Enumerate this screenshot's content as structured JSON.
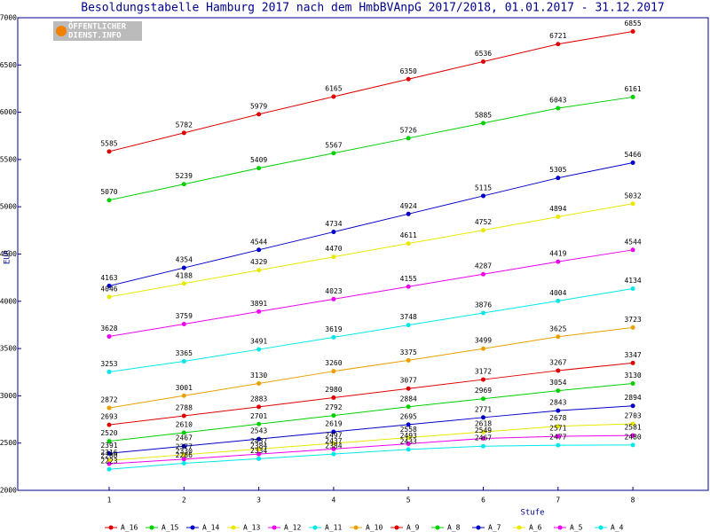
{
  "chart_data": {
    "type": "line",
    "title": "Besoldungstabelle Hamburg 2017 nach dem HmbBVAnpG 2017/2018, 01.01.2017 - 31.12.2017",
    "logo": [
      "ÖFFENTLICHER",
      "DIENST.INFO"
    ],
    "x_label": "Stufe",
    "y_label": "EUR",
    "categories": [
      "1",
      "2",
      "3",
      "4",
      "5",
      "6",
      "7",
      "8"
    ],
    "ylim": [
      2000,
      7000
    ],
    "yticks": [
      2000,
      2500,
      3000,
      3500,
      4000,
      4500,
      5000,
      5500,
      6000,
      6500,
      7000
    ],
    "legend": "bottom",
    "series": [
      {
        "name": "A_16",
        "color": "#e00000",
        "values": [
          5585,
          5782,
          5979,
          6165,
          6350,
          6536,
          6721,
          6855
        ]
      },
      {
        "name": "A_15",
        "color": "#00d000",
        "values": [
          5070,
          5239,
          5409,
          5567,
          5726,
          5885,
          6043,
          6161
        ]
      },
      {
        "name": "A_14",
        "color": "#0000c8",
        "values": [
          4163,
          4354,
          4544,
          4734,
          4924,
          5115,
          5305,
          5466
        ]
      },
      {
        "name": "A_13",
        "color": "#e8e800",
        "values": [
          4046,
          4188,
          4329,
          4470,
          4611,
          4752,
          4894,
          5032
        ]
      },
      {
        "name": "A_12",
        "color": "#f000f0",
        "values": [
          3628,
          3759,
          3891,
          4023,
          4155,
          4287,
          4419,
          4544
        ]
      },
      {
        "name": "A_11",
        "color": "#00e8e8",
        "values": [
          3253,
          3365,
          3491,
          3619,
          3748,
          3876,
          4004,
          4134
        ]
      },
      {
        "name": "A_10",
        "color": "#e8a000",
        "values": [
          2872,
          3001,
          3130,
          3260,
          3375,
          3499,
          3625,
          3723
        ]
      },
      {
        "name": "A_9",
        "color": "#e00000",
        "values": [
          2693,
          2788,
          2883,
          2980,
          3077,
          3172,
          3267,
          3347
        ]
      },
      {
        "name": "A_8",
        "color": "#00d000",
        "values": [
          2520,
          2610,
          2701,
          2792,
          2884,
          2969,
          3054,
          3130
        ]
      },
      {
        "name": "A_7",
        "color": "#0000c8",
        "values": [
          2391,
          2467,
          2543,
          2619,
          2695,
          2771,
          2843,
          2894
        ]
      },
      {
        "name": "A_6",
        "color": "#e8e800",
        "values": [
          2316,
          2377,
          2437,
          2497,
          2558,
          2618,
          2678,
          2703
        ]
      },
      {
        "name": "A_5",
        "color": "#f000f0",
        "values": [
          2280,
          2330,
          2384,
          2437,
          2493,
          2549,
          2571,
          2581
        ]
      },
      {
        "name": "A_4",
        "color": "#00e8e8",
        "values": [
          2223,
          2286,
          2334,
          2384,
          2433,
          2467,
          2477,
          2480
        ]
      }
    ]
  }
}
